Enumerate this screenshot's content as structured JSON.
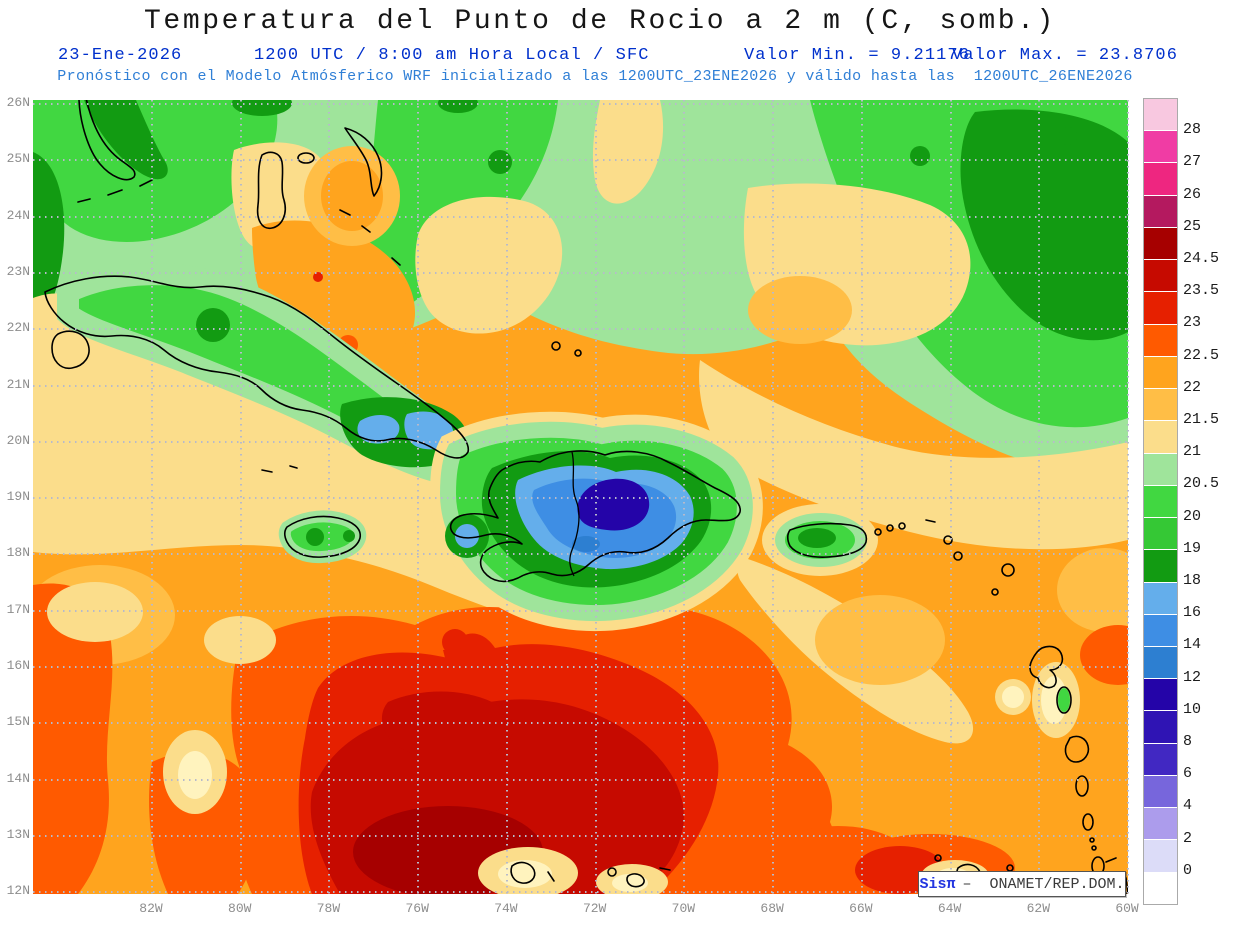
{
  "title": "Temperatura del Punto de Rocio a 2 m (C, somb.)",
  "header": {
    "date": "23-Ene-2026",
    "run_info": "1200 UTC / 8:00 am Hora Local / SFC",
    "min_value": "Valor Min. = 9.21176",
    "max_value": "Valor Max. = 23.8706",
    "model_info": "Pronóstico con el Modelo Atmósferico WRF inicializado a las 1200UTC_23ENE2026 y válido hasta las  1200UTC_26ENE2026"
  },
  "map": {
    "lat_ticks": [
      "26N",
      "25N",
      "24N",
      "23N",
      "22N",
      "21N",
      "20N",
      "19N",
      "18N",
      "17N",
      "16N",
      "15N",
      "14N",
      "13N",
      "12N"
    ],
    "lon_ticks": [
      "82W",
      "80W",
      "78W",
      "76W",
      "74W",
      "72W",
      "70W",
      "68W",
      "66W",
      "64W",
      "62W",
      "60W"
    ]
  },
  "colorbar": {
    "units": "C",
    "bands": [
      {
        "color": "#F8C8E0",
        "label": "28"
      },
      {
        "color": "#F03CA4",
        "label": "27"
      },
      {
        "color": "#EE2680",
        "label": "26"
      },
      {
        "color": "#B4195F",
        "label": "25"
      },
      {
        "color": "#A60000",
        "label": "24.5"
      },
      {
        "color": "#C60A00",
        "label": "23.5"
      },
      {
        "color": "#E62000",
        "label": "23"
      },
      {
        "color": "#FF5A00",
        "label": "22.5"
      },
      {
        "color": "#FFA41E",
        "label": "22"
      },
      {
        "color": "#FFBE46",
        "label": "21.5"
      },
      {
        "color": "#FBDD8B",
        "label": "21"
      },
      {
        "color": "#9FE49B",
        "label": "20.5"
      },
      {
        "color": "#41D741",
        "label": "20"
      },
      {
        "color": "#35C835",
        "label": "19"
      },
      {
        "color": "#129B12",
        "label": "18"
      },
      {
        "color": "#64AEEB",
        "label": "16"
      },
      {
        "color": "#3E8EE4",
        "label": "14"
      },
      {
        "color": "#2D7FD1",
        "label": "12"
      },
      {
        "color": "#2404A8",
        "label": "10"
      },
      {
        "color": "#2F14B4",
        "label": "8"
      },
      {
        "color": "#4128C2",
        "label": "6"
      },
      {
        "color": "#7766DC",
        "label": "4"
      },
      {
        "color": "#AC9CEC",
        "label": "2"
      },
      {
        "color": "#DCDCF8",
        "label": "0"
      },
      {
        "color": "#FFFFFF",
        "label": ""
      }
    ]
  },
  "watermark": {
    "brand": "Sisπ",
    "org": "–  ONAMET/REP.DOM."
  }
}
